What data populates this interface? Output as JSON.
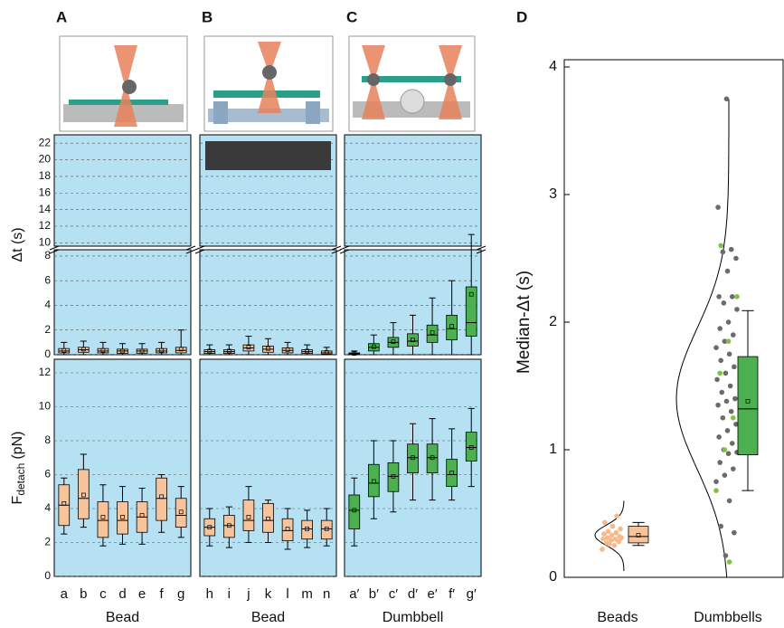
{
  "chart_data": [
    {
      "type": "box_pair",
      "label": "A",
      "categories": [
        "a",
        "b",
        "c",
        "d",
        "e",
        "f",
        "g"
      ],
      "xlabel": "Bead",
      "box_color": "#f7c39b",
      "point_color": "#f4a878",
      "dt_ylabel": "Δt (s)",
      "dt_ylim_lower": [
        0,
        8.8
      ],
      "dt_ylim_upper": [
        9.6,
        23
      ],
      "dt_yticks": [
        0,
        2,
        4,
        6,
        8,
        10,
        12,
        14,
        16,
        18,
        20,
        22
      ],
      "force_ylabel": "F",
      "force_ylabel_sub": "detach",
      "force_ylabel_unit": "(pN)",
      "force_ylim": [
        0,
        12.8
      ],
      "force_yticks": [
        0,
        2,
        4,
        6,
        8,
        10,
        12
      ],
      "dt_boxes": [
        {
          "whislo": 0,
          "q1": 0.15,
          "med": 0.3,
          "q3": 0.5,
          "whishi": 1.0,
          "mean": 0.35
        },
        {
          "whislo": 0,
          "q1": 0.2,
          "med": 0.4,
          "q3": 0.6,
          "whishi": 1.1,
          "mean": 0.45
        },
        {
          "whislo": 0,
          "q1": 0.15,
          "med": 0.3,
          "q3": 0.5,
          "whishi": 1.0,
          "mean": 0.35
        },
        {
          "whislo": 0,
          "q1": 0.1,
          "med": 0.3,
          "q3": 0.45,
          "whishi": 0.9,
          "mean": 0.3
        },
        {
          "whislo": 0,
          "q1": 0.12,
          "med": 0.3,
          "q3": 0.45,
          "whishi": 0.9,
          "mean": 0.3
        },
        {
          "whislo": 0,
          "q1": 0.15,
          "med": 0.3,
          "q3": 0.5,
          "whishi": 1.0,
          "mean": 0.35
        },
        {
          "whislo": 0,
          "q1": 0.15,
          "med": 0.35,
          "q3": 0.6,
          "whishi": 2.0,
          "mean": 0.45
        }
      ],
      "force_boxes": [
        {
          "whislo": 2.5,
          "q1": 3.0,
          "med": 4.2,
          "q3": 5.4,
          "whishi": 5.8,
          "mean": 4.3
        },
        {
          "whislo": 2.9,
          "q1": 3.4,
          "med": 4.6,
          "q3": 6.3,
          "whishi": 7.2,
          "mean": 4.8
        },
        {
          "whislo": 1.8,
          "q1": 2.3,
          "med": 3.3,
          "q3": 4.4,
          "whishi": 5.4,
          "mean": 3.5
        },
        {
          "whislo": 1.9,
          "q1": 2.5,
          "med": 3.3,
          "q3": 4.4,
          "whishi": 5.3,
          "mean": 3.5
        },
        {
          "whislo": 1.9,
          "q1": 2.6,
          "med": 3.5,
          "q3": 4.4,
          "whishi": 5.2,
          "mean": 3.6
        },
        {
          "whislo": 2.6,
          "q1": 3.3,
          "med": 4.6,
          "q3": 5.8,
          "whishi": 6.0,
          "mean": 4.7
        },
        {
          "whislo": 2.3,
          "q1": 2.9,
          "med": 3.6,
          "q3": 4.6,
          "whishi": 5.3,
          "mean": 3.8
        }
      ]
    },
    {
      "type": "box_pair",
      "label": "B",
      "categories": [
        "h",
        "i",
        "j",
        "k",
        "l",
        "m",
        "n"
      ],
      "xlabel": "Bead",
      "box_color": "#f7c39b",
      "point_color": "#f4a878",
      "dt_boxes": [
        {
          "whislo": 0,
          "q1": 0.1,
          "med": 0.25,
          "q3": 0.4,
          "whishi": 0.8,
          "mean": 0.3
        },
        {
          "whislo": 0,
          "q1": 0.1,
          "med": 0.25,
          "q3": 0.4,
          "whishi": 0.8,
          "mean": 0.3
        },
        {
          "whislo": 0,
          "q1": 0.3,
          "med": 0.55,
          "q3": 0.8,
          "whishi": 1.5,
          "mean": 0.6
        },
        {
          "whislo": 0,
          "q1": 0.2,
          "med": 0.45,
          "q3": 0.7,
          "whishi": 1.3,
          "mean": 0.5
        },
        {
          "whislo": 0,
          "q1": 0.15,
          "med": 0.35,
          "q3": 0.55,
          "whishi": 1.0,
          "mean": 0.4
        },
        {
          "whislo": 0,
          "q1": 0.1,
          "med": 0.25,
          "q3": 0.4,
          "whishi": 0.8,
          "mean": 0.3
        },
        {
          "whislo": 0,
          "q1": 0.05,
          "med": 0.15,
          "q3": 0.3,
          "whishi": 0.6,
          "mean": 0.2
        }
      ],
      "force_boxes": [
        {
          "whislo": 1.8,
          "q1": 2.4,
          "med": 2.9,
          "q3": 3.4,
          "whishi": 4.0,
          "mean": 2.9
        },
        {
          "whislo": 1.7,
          "q1": 2.3,
          "med": 3.0,
          "q3": 3.6,
          "whishi": 4.1,
          "mean": 3.0
        },
        {
          "whislo": 2.0,
          "q1": 2.7,
          "med": 3.3,
          "q3": 4.5,
          "whishi": 5.3,
          "mean": 3.5
        },
        {
          "whislo": 2.0,
          "q1": 2.6,
          "med": 3.3,
          "q3": 4.3,
          "whishi": 4.5,
          "mean": 3.4
        },
        {
          "whislo": 1.6,
          "q1": 2.1,
          "med": 2.7,
          "q3": 3.4,
          "whishi": 4.0,
          "mean": 2.8
        },
        {
          "whislo": 1.7,
          "q1": 2.2,
          "med": 2.8,
          "q3": 3.3,
          "whishi": 3.9,
          "mean": 2.8
        },
        {
          "whislo": 1.8,
          "q1": 2.2,
          "med": 2.8,
          "q3": 3.3,
          "whishi": 4.0,
          "mean": 2.8
        }
      ]
    },
    {
      "type": "box_pair",
      "label": "C",
      "categories": [
        "a′",
        "b′",
        "c′",
        "d′",
        "e′",
        "f′",
        "g′"
      ],
      "xlabel": "Dumbbell",
      "box_color": "#4caf50",
      "point_color": "#1f8f3a",
      "dt_boxes": [
        {
          "whislo": 0,
          "q1": 0.05,
          "med": 0.1,
          "q3": 0.15,
          "whishi": 0.3,
          "mean": 0.1
        },
        {
          "whislo": 0,
          "q1": 0.3,
          "med": 0.6,
          "q3": 0.9,
          "whishi": 1.6,
          "mean": 0.65
        },
        {
          "whislo": 0,
          "q1": 0.6,
          "med": 1.0,
          "q3": 1.4,
          "whishi": 2.6,
          "mean": 1.05
        },
        {
          "whislo": 0,
          "q1": 0.7,
          "med": 1.1,
          "q3": 1.7,
          "whishi": 3.2,
          "mean": 1.2
        },
        {
          "whislo": 0,
          "q1": 1.0,
          "med": 1.6,
          "q3": 2.4,
          "whishi": 4.6,
          "mean": 1.8
        },
        {
          "whislo": 0,
          "q1": 1.2,
          "med": 2.1,
          "q3": 3.2,
          "whishi": 6.0,
          "mean": 2.3
        },
        {
          "whislo": 0,
          "q1": 1.5,
          "med": 2.6,
          "q3": 5.5,
          "whishi": 11,
          "mean": 4.9
        }
      ],
      "force_boxes": [
        {
          "whislo": 1.8,
          "q1": 2.8,
          "med": 3.9,
          "q3": 4.8,
          "whishi": 5.8,
          "mean": 3.9
        },
        {
          "whislo": 3.4,
          "q1": 4.7,
          "med": 5.5,
          "q3": 6.6,
          "whishi": 8.0,
          "mean": 5.6
        },
        {
          "whislo": 3.8,
          "q1": 5.0,
          "med": 5.9,
          "q3": 6.7,
          "whishi": 8.0,
          "mean": 5.9
        },
        {
          "whislo": 4.5,
          "q1": 6.1,
          "med": 7.0,
          "q3": 7.8,
          "whishi": 9.0,
          "mean": 7.0
        },
        {
          "whislo": 4.5,
          "q1": 6.1,
          "med": 7.0,
          "q3": 7.8,
          "whishi": 9.3,
          "mean": 7.0
        },
        {
          "whislo": 4.5,
          "q1": 5.3,
          "med": 6.0,
          "q3": 6.9,
          "whishi": 8.7,
          "mean": 6.1
        },
        {
          "whislo": 5.3,
          "q1": 6.8,
          "med": 7.6,
          "q3": 8.5,
          "whishi": 9.9,
          "mean": 7.6
        }
      ]
    },
    {
      "type": "box",
      "label": "D",
      "categories": [
        "Beads",
        "Dumbbells"
      ],
      "ylabel": "Median-Δt (s)",
      "ylim": [
        0,
        4
      ],
      "yticks": [
        0,
        1,
        2,
        3,
        4
      ],
      "box_colors": [
        "#f7c39b",
        "#4caf50"
      ],
      "boxes": [
        {
          "whislo": 0.25,
          "q1": 0.27,
          "med": 0.32,
          "q3": 0.4,
          "whishi": 0.43,
          "mean": 0.33
        },
        {
          "whislo": 0.68,
          "q1": 0.96,
          "med": 1.32,
          "q3": 1.73,
          "whishi": 2.09,
          "mean": 1.38
        }
      ],
      "fits": [
        {
          "mean": 0.33,
          "sd": 0.08,
          "range": [
            0.05,
            0.6
          ]
        },
        {
          "mean": 1.4,
          "sd": 0.55,
          "range": [
            0,
            3.75
          ]
        }
      ],
      "series": [
        {
          "group": 0,
          "color": "#f7b98a",
          "values": [
            0.22,
            0.25,
            0.27,
            0.28,
            0.29,
            0.3,
            0.3,
            0.31,
            0.32,
            0.33,
            0.34,
            0.35,
            0.36,
            0.38,
            0.4,
            0.43,
            0.48,
            0.26,
            0.31
          ]
        },
        {
          "group": 1,
          "color": "#6b6b6b",
          "values": [
            3.75,
            2.9,
            2.57,
            2.55,
            2.5,
            2.4,
            2.2,
            2.2,
            2.15,
            2.1,
            2.0,
            1.95,
            1.9,
            1.85,
            1.8,
            1.75,
            1.7,
            1.65,
            1.6,
            1.55,
            1.5,
            1.45,
            1.4,
            1.38,
            1.35,
            1.3,
            1.25,
            1.2,
            1.15,
            1.1,
            1.05,
            1.0,
            0.98,
            0.97,
            0.9,
            0.85,
            0.8,
            0.75,
            0.6,
            0.4,
            0.35,
            0.17
          ]
        },
        {
          "group": 1,
          "color": "#7dc242",
          "values": [
            2.2,
            1.85,
            1.6,
            1.25,
            1.0,
            0.68,
            0.12,
            2.6
          ]
        }
      ]
    }
  ]
}
